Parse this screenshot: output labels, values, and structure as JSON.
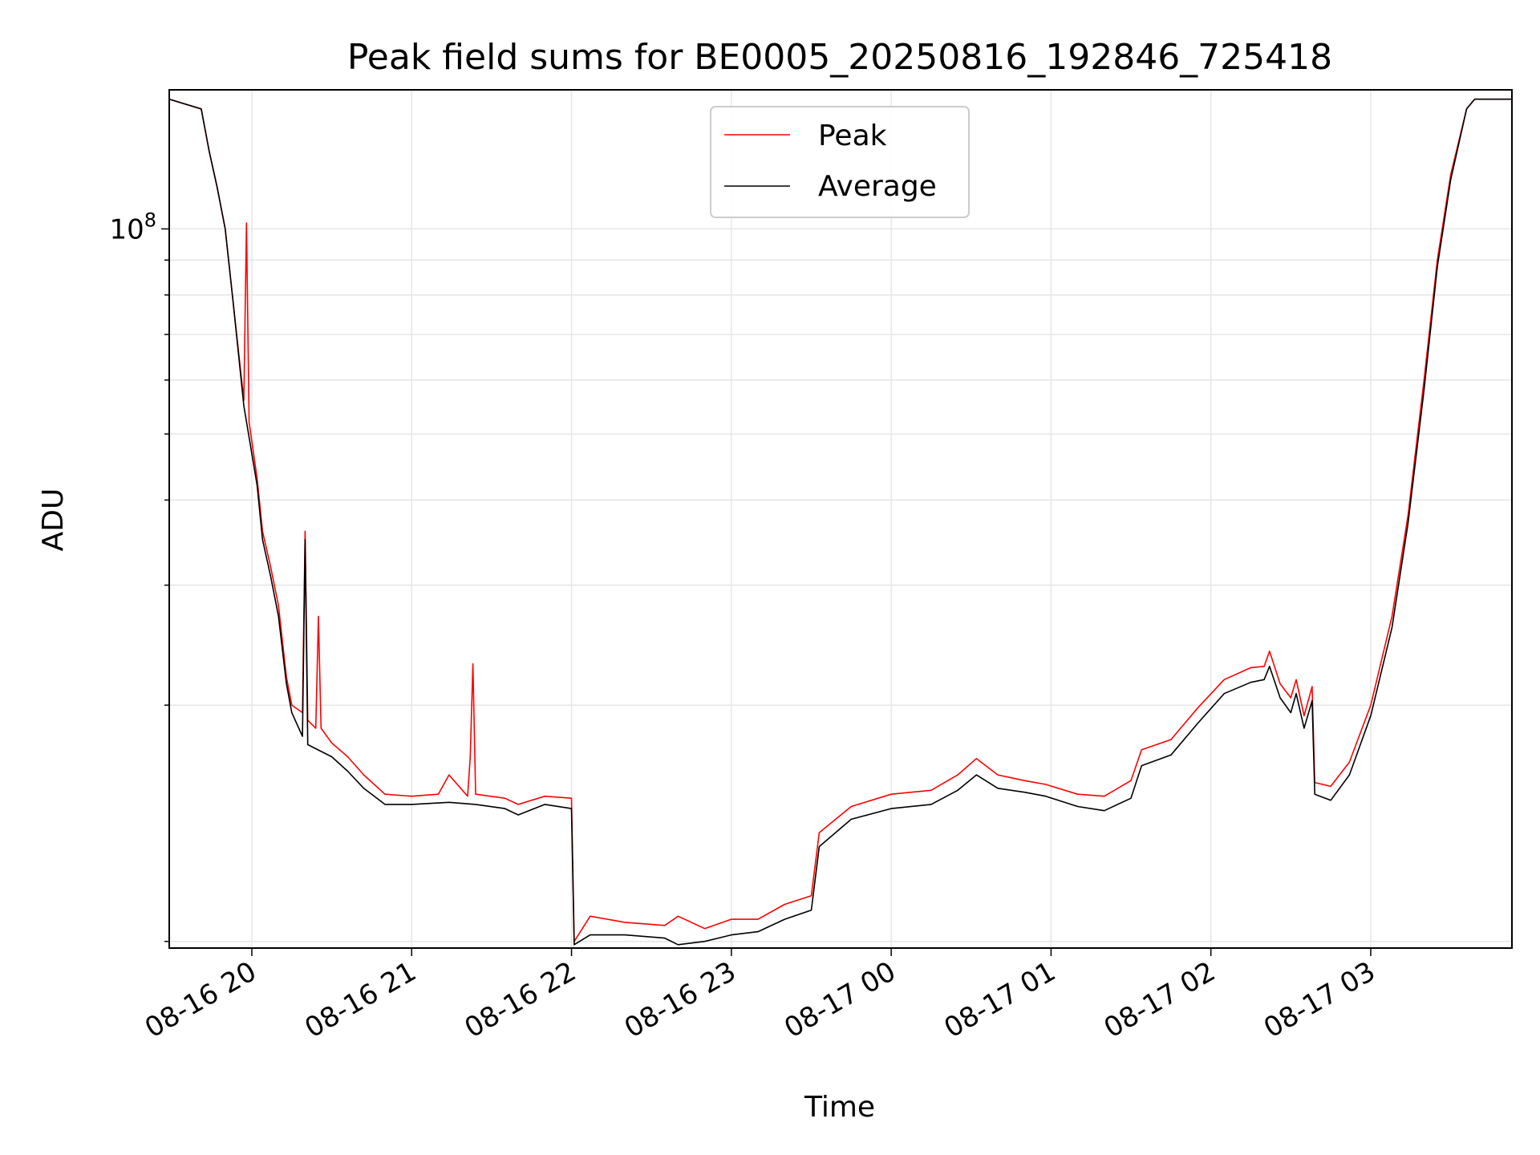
{
  "chart_data": {
    "type": "line",
    "title": "Peak field sums for BE0005_20250816_192846_725418",
    "xlabel": "Time",
    "ylabel": "ADU",
    "y_scale": "log",
    "ylim": [
      8800000,
      160000000
    ],
    "y_tick_major": [
      {
        "value": 100000000,
        "base": "10",
        "exp": "8"
      }
    ],
    "y_tick_minor": [
      9000000,
      20000000,
      30000000,
      40000000,
      50000000,
      60000000,
      70000000,
      80000000,
      90000000,
      200000000
    ],
    "xlim": [
      "2025-08-16 19:29",
      "2025-08-17 03:53"
    ],
    "x_ticks": [
      {
        "t": "2025-08-16 20:00",
        "label": "08-16 20"
      },
      {
        "t": "2025-08-16 21:00",
        "label": "08-16 21"
      },
      {
        "t": "2025-08-16 22:00",
        "label": "08-16 22"
      },
      {
        "t": "2025-08-16 23:00",
        "label": "08-16 23"
      },
      {
        "t": "2025-08-17 00:00",
        "label": "08-17 00"
      },
      {
        "t": "2025-08-17 01:00",
        "label": "08-17 01"
      },
      {
        "t": "2025-08-17 02:00",
        "label": "08-17 02"
      },
      {
        "t": "2025-08-17 03:00",
        "label": "08-17 03"
      }
    ],
    "grid": true,
    "legend_position": "top-center",
    "series": [
      {
        "name": "Peak",
        "color": "#ff0000",
        "points": [
          [
            "2025-08-16 19:29",
            155000000
          ],
          [
            "2025-08-16 19:41",
            150000000
          ],
          [
            "2025-08-16 19:44",
            130000000
          ],
          [
            "2025-08-16 19:47",
            115000000
          ],
          [
            "2025-08-16 19:50",
            100000000
          ],
          [
            "2025-08-16 19:53",
            78000000
          ],
          [
            "2025-08-16 19:57",
            56000000
          ],
          [
            "2025-08-16 19:58",
            102000000
          ],
          [
            "2025-08-16 19:59",
            52000000
          ],
          [
            "2025-08-16 20:02",
            43000000
          ],
          [
            "2025-08-16 20:04",
            36000000
          ],
          [
            "2025-08-16 20:07",
            32000000
          ],
          [
            "2025-08-16 20:10",
            28000000
          ],
          [
            "2025-08-16 20:13",
            22000000
          ],
          [
            "2025-08-16 20:15",
            20000000
          ],
          [
            "2025-08-16 20:19",
            19500000
          ],
          [
            "2025-08-16 20:20",
            36000000
          ],
          [
            "2025-08-16 20:21",
            19000000
          ],
          [
            "2025-08-16 20:24",
            18500000
          ],
          [
            "2025-08-16 20:25",
            27000000
          ],
          [
            "2025-08-16 20:26",
            18500000
          ],
          [
            "2025-08-16 20:30",
            17600000
          ],
          [
            "2025-08-16 20:36",
            16800000
          ],
          [
            "2025-08-16 20:42",
            15800000
          ],
          [
            "2025-08-16 20:50",
            14800000
          ],
          [
            "2025-08-16 21:00",
            14700000
          ],
          [
            "2025-08-16 21:10",
            14800000
          ],
          [
            "2025-08-16 21:14",
            15800000
          ],
          [
            "2025-08-16 21:21",
            14700000
          ],
          [
            "2025-08-16 21:22",
            16800000
          ],
          [
            "2025-08-16 21:23",
            23000000
          ],
          [
            "2025-08-16 21:24",
            14800000
          ],
          [
            "2025-08-16 21:35",
            14600000
          ],
          [
            "2025-08-16 21:40",
            14300000
          ],
          [
            "2025-08-16 21:50",
            14700000
          ],
          [
            "2025-08-16 22:00",
            14600000
          ],
          [
            "2025-08-16 22:01",
            9000000
          ],
          [
            "2025-08-16 22:07",
            9800000
          ],
          [
            "2025-08-16 22:20",
            9600000
          ],
          [
            "2025-08-16 22:35",
            9500000
          ],
          [
            "2025-08-16 22:40",
            9800000
          ],
          [
            "2025-08-16 22:50",
            9400000
          ],
          [
            "2025-08-16 23:00",
            9700000
          ],
          [
            "2025-08-16 23:10",
            9700000
          ],
          [
            "2025-08-16 23:20",
            10200000
          ],
          [
            "2025-08-16 23:30",
            10500000
          ],
          [
            "2025-08-16 23:33",
            13000000
          ],
          [
            "2025-08-16 23:45",
            14200000
          ],
          [
            "2025-08-17 00:00",
            14800000
          ],
          [
            "2025-08-17 00:15",
            15000000
          ],
          [
            "2025-08-17 00:25",
            15800000
          ],
          [
            "2025-08-17 00:32",
            16700000
          ],
          [
            "2025-08-17 00:40",
            15800000
          ],
          [
            "2025-08-17 00:50",
            15500000
          ],
          [
            "2025-08-17 00:58",
            15300000
          ],
          [
            "2025-08-17 01:10",
            14800000
          ],
          [
            "2025-08-17 01:20",
            14700000
          ],
          [
            "2025-08-17 01:30",
            15500000
          ],
          [
            "2025-08-17 01:34",
            17200000
          ],
          [
            "2025-08-17 01:45",
            17800000
          ],
          [
            "2025-08-17 01:55",
            19800000
          ],
          [
            "2025-08-17 02:05",
            21800000
          ],
          [
            "2025-08-17 02:15",
            22700000
          ],
          [
            "2025-08-17 02:20",
            22800000
          ],
          [
            "2025-08-17 02:22",
            24000000
          ],
          [
            "2025-08-17 02:26",
            21500000
          ],
          [
            "2025-08-17 02:30",
            20500000
          ],
          [
            "2025-08-17 02:32",
            21800000
          ],
          [
            "2025-08-17 02:35",
            19300000
          ],
          [
            "2025-08-17 02:38",
            21300000
          ],
          [
            "2025-08-17 02:39",
            15400000
          ],
          [
            "2025-08-17 02:45",
            15200000
          ],
          [
            "2025-08-17 02:52",
            16500000
          ],
          [
            "2025-08-17 03:00",
            20000000
          ],
          [
            "2025-08-17 03:08",
            27000000
          ],
          [
            "2025-08-17 03:14",
            38000000
          ],
          [
            "2025-08-17 03:20",
            60000000
          ],
          [
            "2025-08-17 03:25",
            90000000
          ],
          [
            "2025-08-17 03:30",
            120000000
          ],
          [
            "2025-08-17 03:36",
            150000000
          ],
          [
            "2025-08-17 03:39",
            155000000
          ],
          [
            "2025-08-17 03:53",
            155000000
          ]
        ]
      },
      {
        "name": "Average",
        "color": "#000000",
        "points": [
          [
            "2025-08-16 19:29",
            155000000
          ],
          [
            "2025-08-16 19:41",
            150000000
          ],
          [
            "2025-08-16 19:44",
            130000000
          ],
          [
            "2025-08-16 19:47",
            115000000
          ],
          [
            "2025-08-16 19:50",
            100000000
          ],
          [
            "2025-08-16 19:53",
            78000000
          ],
          [
            "2025-08-16 19:57",
            55000000
          ],
          [
            "2025-08-16 20:02",
            42000000
          ],
          [
            "2025-08-16 20:04",
            35000000
          ],
          [
            "2025-08-16 20:07",
            31000000
          ],
          [
            "2025-08-16 20:10",
            27000000
          ],
          [
            "2025-08-16 20:13",
            21500000
          ],
          [
            "2025-08-16 20:15",
            19500000
          ],
          [
            "2025-08-16 20:19",
            18000000
          ],
          [
            "2025-08-16 20:20",
            35000000
          ],
          [
            "2025-08-16 20:21",
            17500000
          ],
          [
            "2025-08-16 20:30",
            16800000
          ],
          [
            "2025-08-16 20:36",
            16000000
          ],
          [
            "2025-08-16 20:42",
            15100000
          ],
          [
            "2025-08-16 20:50",
            14300000
          ],
          [
            "2025-08-16 21:00",
            14300000
          ],
          [
            "2025-08-16 21:14",
            14400000
          ],
          [
            "2025-08-16 21:24",
            14300000
          ],
          [
            "2025-08-16 21:35",
            14100000
          ],
          [
            "2025-08-16 21:40",
            13800000
          ],
          [
            "2025-08-16 21:50",
            14300000
          ],
          [
            "2025-08-16 22:00",
            14100000
          ],
          [
            "2025-08-16 22:01",
            8900000
          ],
          [
            "2025-08-16 22:07",
            9200000
          ],
          [
            "2025-08-16 22:20",
            9200000
          ],
          [
            "2025-08-16 22:35",
            9100000
          ],
          [
            "2025-08-16 22:40",
            8900000
          ],
          [
            "2025-08-16 22:50",
            9000000
          ],
          [
            "2025-08-16 23:00",
            9200000
          ],
          [
            "2025-08-16 23:10",
            9300000
          ],
          [
            "2025-08-16 23:20",
            9700000
          ],
          [
            "2025-08-16 23:30",
            10000000
          ],
          [
            "2025-08-16 23:33",
            12400000
          ],
          [
            "2025-08-16 23:45",
            13600000
          ],
          [
            "2025-08-17 00:00",
            14100000
          ],
          [
            "2025-08-17 00:15",
            14300000
          ],
          [
            "2025-08-17 00:25",
            15000000
          ],
          [
            "2025-08-17 00:32",
            15800000
          ],
          [
            "2025-08-17 00:40",
            15100000
          ],
          [
            "2025-08-17 00:50",
            14900000
          ],
          [
            "2025-08-17 00:58",
            14700000
          ],
          [
            "2025-08-17 01:10",
            14200000
          ],
          [
            "2025-08-17 01:20",
            14000000
          ],
          [
            "2025-08-17 01:30",
            14600000
          ],
          [
            "2025-08-17 01:34",
            16300000
          ],
          [
            "2025-08-17 01:45",
            16900000
          ],
          [
            "2025-08-17 01:55",
            18800000
          ],
          [
            "2025-08-17 02:05",
            20800000
          ],
          [
            "2025-08-17 02:15",
            21600000
          ],
          [
            "2025-08-17 02:20",
            21800000
          ],
          [
            "2025-08-17 02:22",
            22800000
          ],
          [
            "2025-08-17 02:26",
            20500000
          ],
          [
            "2025-08-17 02:30",
            19500000
          ],
          [
            "2025-08-17 02:32",
            20800000
          ],
          [
            "2025-08-17 02:35",
            18500000
          ],
          [
            "2025-08-17 02:38",
            20300000
          ],
          [
            "2025-08-17 02:39",
            14800000
          ],
          [
            "2025-08-17 02:45",
            14500000
          ],
          [
            "2025-08-17 02:52",
            15800000
          ],
          [
            "2025-08-17 03:00",
            19300000
          ],
          [
            "2025-08-17 03:08",
            26000000
          ],
          [
            "2025-08-17 03:14",
            37000000
          ],
          [
            "2025-08-17 03:20",
            58000000
          ],
          [
            "2025-08-17 03:25",
            88000000
          ],
          [
            "2025-08-17 03:30",
            118000000
          ],
          [
            "2025-08-17 03:36",
            150000000
          ],
          [
            "2025-08-17 03:39",
            155000000
          ],
          [
            "2025-08-17 03:53",
            155000000
          ]
        ]
      }
    ]
  }
}
